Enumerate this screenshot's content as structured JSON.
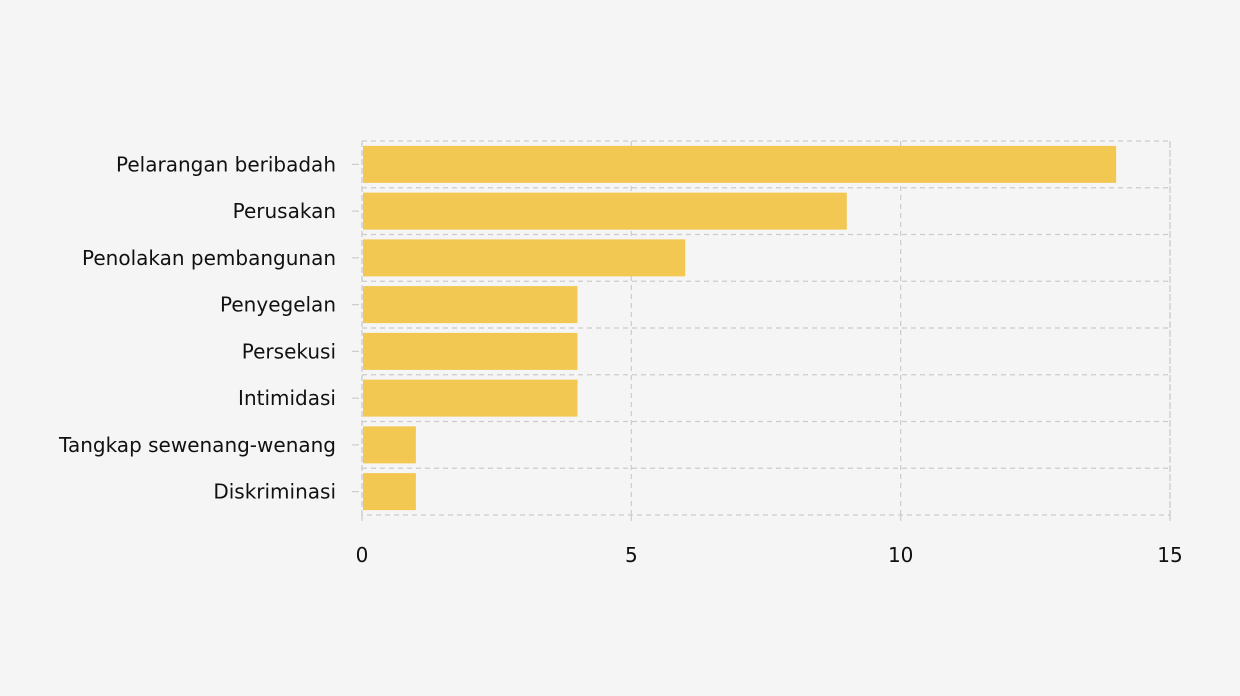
{
  "chart_data": {
    "type": "bar",
    "orientation": "horizontal",
    "title": "",
    "xlabel": "",
    "ylabel": "",
    "categories": [
      "Pelarangan beribadah",
      "Perusakan",
      "Penolakan pembangunan",
      "Penyegelan",
      "Persekusi",
      "Intimidasi",
      "Tangkap sewenang-wenang",
      "Diskriminasi"
    ],
    "values": [
      14,
      9,
      6,
      4,
      4,
      4,
      1,
      1
    ],
    "xlim": [
      0,
      15
    ],
    "xticks": [
      0,
      5,
      10,
      15
    ],
    "xtick_labels": [
      "0",
      "5",
      "10",
      "15"
    ],
    "grid": true,
    "grid_style": "dashed",
    "bar_color": "#f2c752",
    "grid_color": "#cccccc",
    "background_color": "#f5f5f5"
  }
}
